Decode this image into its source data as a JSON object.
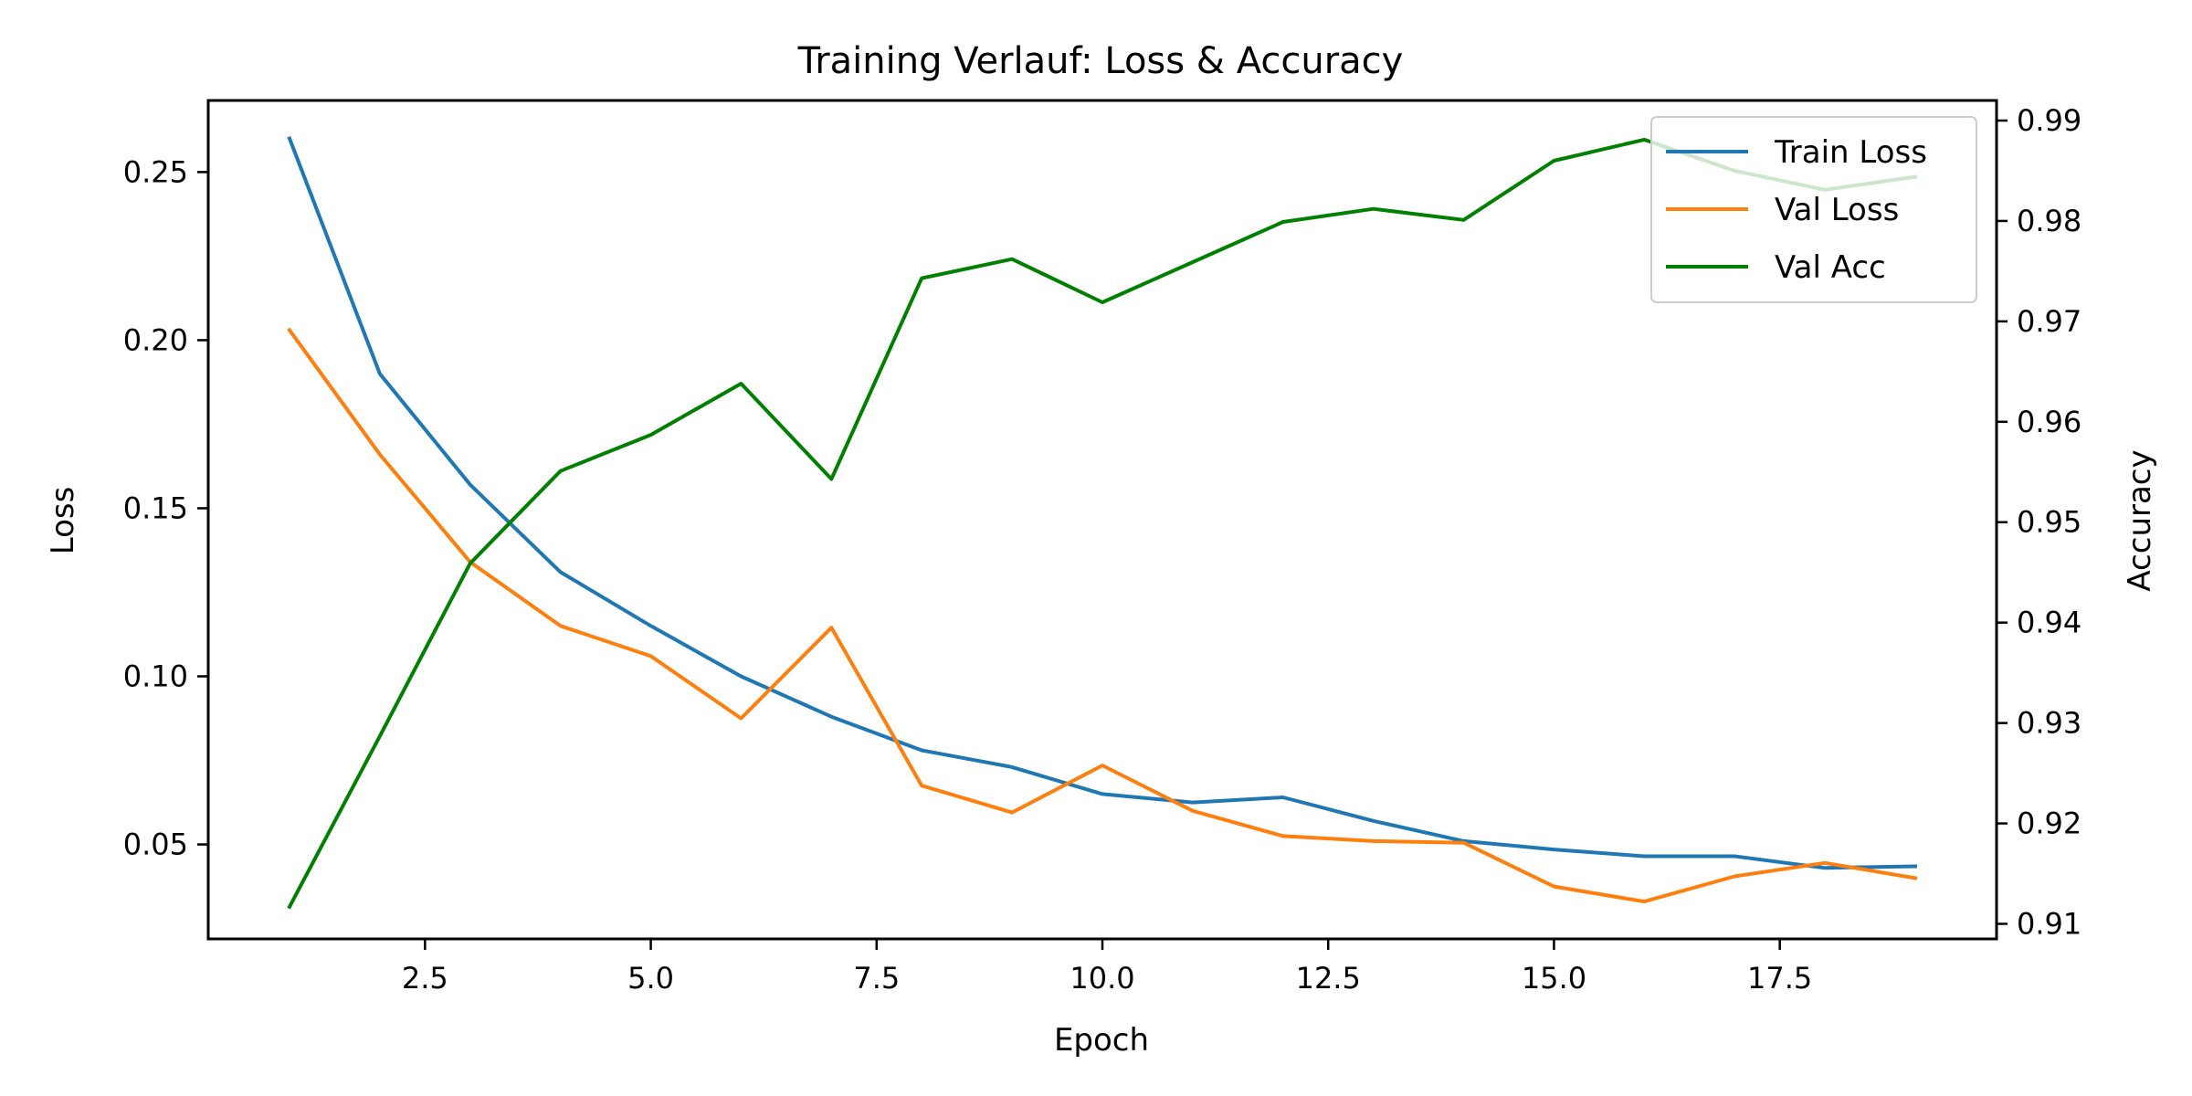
{
  "chart_data": {
    "type": "line",
    "title": "Training Verlauf: Loss & Accuracy",
    "xlabel": "Epoch",
    "ylabel_left": "Loss",
    "ylabel_right": "Accuracy",
    "xlim": [
      0.1,
      19.9
    ],
    "ylim_left": [
      0.0219,
      0.2713
    ],
    "ylim_right": [
      0.9085,
      0.992
    ],
    "xticks": [
      2.5,
      5.0,
      7.5,
      10.0,
      12.5,
      15.0,
      17.5
    ],
    "xtick_labels": [
      "2.5",
      "5.0",
      "7.5",
      "10.0",
      "12.5",
      "15.0",
      "17.5"
    ],
    "yticks_left": [
      0.05,
      0.1,
      0.15,
      0.2,
      0.25
    ],
    "ytick_labels_left": [
      "0.05",
      "0.10",
      "0.15",
      "0.20",
      "0.25"
    ],
    "yticks_right": [
      0.91,
      0.92,
      0.93,
      0.94,
      0.95,
      0.96,
      0.97,
      0.98,
      0.99
    ],
    "ytick_labels_right": [
      "0.91",
      "0.92",
      "0.93",
      "0.94",
      "0.95",
      "0.96",
      "0.97",
      "0.98",
      "0.99"
    ],
    "grid": false,
    "legend_position": "top-right",
    "x": [
      1,
      2,
      3,
      4,
      5,
      6,
      7,
      8,
      9,
      10,
      11,
      12,
      13,
      14,
      15,
      16,
      17,
      18,
      19
    ],
    "series": [
      {
        "name": "Train Loss",
        "axis": "left",
        "color": "#1f77b4",
        "values": [
          0.26,
          0.19,
          0.157,
          0.131,
          0.115,
          0.1,
          0.088,
          0.078,
          0.073,
          0.065,
          0.0625,
          0.064,
          0.057,
          0.051,
          0.0485,
          0.0465,
          0.0465,
          0.043,
          0.0435
        ]
      },
      {
        "name": "Val Loss",
        "axis": "left",
        "color": "#ff7f0e",
        "values": [
          0.203,
          0.166,
          0.134,
          0.115,
          0.106,
          0.0875,
          0.1145,
          0.0675,
          0.0595,
          0.0735,
          0.06,
          0.0525,
          0.051,
          0.0505,
          0.0375,
          0.033,
          0.0405,
          0.0445,
          0.04
        ]
      },
      {
        "name": "Val Acc",
        "axis": "right",
        "color": "#008000",
        "values": [
          0.9117,
          0.9287,
          0.9459,
          0.9551,
          0.9587,
          0.9638,
          0.9543,
          0.9743,
          0.9762,
          0.9719,
          0.9759,
          0.9799,
          0.9812,
          0.9801,
          0.986,
          0.9881,
          0.985,
          0.9831,
          0.9844
        ]
      }
    ]
  }
}
